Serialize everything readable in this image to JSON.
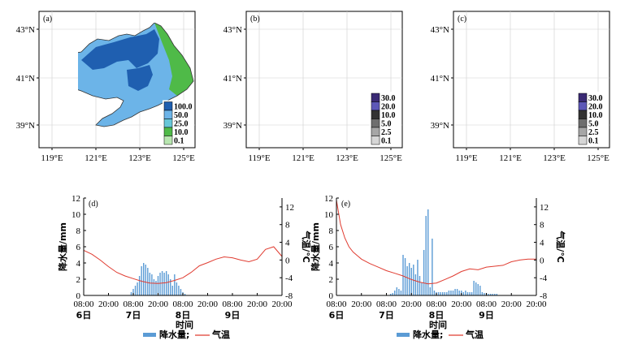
{
  "map_axes": {
    "lon_ticks": [
      "119°E",
      "121°E",
      "123°E",
      "125°E"
    ],
    "lat_ticks": [
      "43°N",
      "41°N",
      "39°N"
    ]
  },
  "maps": [
    {
      "tag": "(a)",
      "legend": [
        "100.0",
        "50.0",
        "25.0",
        "10.0",
        "0.1"
      ],
      "legend_colors": [
        "#1f5fb0",
        "#6cb4e8",
        "#67c7d8",
        "#4fba48",
        "#b8e6b0"
      ],
      "fill_colors": {
        "outer": "#6cb4e8",
        "core": "#1f5fb0",
        "east": "#4fba48",
        "west_spot": "#4fba48"
      }
    },
    {
      "tag": "(b)",
      "legend": [
        "30.0",
        "20.0",
        "10.0",
        "5.0",
        "2.5",
        "0.1"
      ],
      "legend_colors": [
        "#3a2a74",
        "#5d58b8",
        "#333333",
        "#6e6e6e",
        "#a6a6a6",
        "#d6d6d6"
      ],
      "fill_colors": {
        "outer": "#d6d6d6",
        "mid": "#a6a6a6",
        "dark": "#333333",
        "purple": "#5d58b8",
        "deep": "#3a2a74"
      }
    },
    {
      "tag": "(c)",
      "legend": [
        "30.0",
        "20.0",
        "10.0",
        "5.0",
        "2.5",
        "0.1"
      ],
      "legend_colors": [
        "#3a2a74",
        "#5d58b8",
        "#333333",
        "#6e6e6e",
        "#a6a6a6",
        "#d6d6d6"
      ],
      "fill_colors": {
        "outer": "#a6a6a6",
        "dark": "#333333",
        "purple": "#5d58b8",
        "deep": "#3a2a74"
      }
    }
  ],
  "chart_data": [
    {
      "type": "bar",
      "tag": "(d)",
      "x": [
        23,
        24,
        25,
        26,
        27,
        28,
        29,
        30,
        31,
        32,
        33,
        34,
        35,
        36,
        37,
        38,
        39,
        40,
        41,
        42,
        43,
        44,
        45,
        46,
        47,
        48,
        49
      ],
      "values": [
        0.4,
        0.8,
        1.2,
        1.6,
        2.4,
        3.6,
        4.0,
        3.8,
        3.4,
        2.8,
        2.6,
        2.0,
        1.8,
        2.4,
        2.8,
        3.0,
        2.8,
        3.0,
        2.6,
        2.0,
        1.2,
        2.6,
        1.6,
        1.2,
        0.8,
        0.4,
        0.2
      ],
      "temperature": {
        "x": [
          0,
          4,
          8,
          12,
          16,
          20,
          24,
          28,
          32,
          36,
          40,
          44,
          48,
          52,
          56,
          60,
          64,
          68,
          72,
          76,
          80,
          84,
          88,
          92,
          96
        ],
        "values": [
          2.2,
          1.3,
          0.0,
          -1.5,
          -2.8,
          -3.6,
          -4.2,
          -4.8,
          -5.2,
          -5.3,
          -5.1,
          -4.6,
          -4.0,
          -2.8,
          -1.3,
          -0.6,
          0.2,
          0.7,
          0.5,
          0.0,
          -0.4,
          0.2,
          2.4,
          3.0,
          0.8
        ]
      },
      "x_ticks": [
        "08:00",
        "20:00",
        "08:00",
        "20:00",
        "08:00",
        "20:00",
        "08:00",
        "20:00"
      ],
      "x_tick_positions": [
        0,
        12,
        24,
        36,
        48,
        60,
        72,
        84
      ],
      "date_labels": [
        "6日",
        "7日",
        "8日",
        "9日"
      ],
      "date_positions": [
        0,
        24,
        48,
        72
      ],
      "xlim": [
        0,
        96
      ],
      "ylim": [
        0,
        12
      ],
      "y2lim": [
        -8,
        14
      ],
      "y_ticks": [
        "0",
        "2",
        "4",
        "6",
        "8",
        "10",
        "12"
      ],
      "y2_ticks": [
        "-8",
        "-4",
        "0",
        "4",
        "8",
        "12"
      ],
      "ylabel": "降水量/mm",
      "y2label": "气温/℃",
      "xlabel": "时间",
      "bar_color": "#5b9bd5",
      "line_color": "#e03c31"
    },
    {
      "type": "bar",
      "tag": "(e)",
      "x": [
        26,
        27,
        28,
        29,
        30,
        31,
        32,
        33,
        34,
        35,
        36,
        37,
        38,
        39,
        40,
        41,
        42,
        43,
        44,
        45,
        46,
        47,
        48,
        49,
        50,
        51,
        52,
        53,
        54,
        55,
        56,
        57,
        58,
        59,
        60,
        61,
        62,
        63,
        64,
        65,
        66,
        67,
        68,
        69,
        70,
        71,
        72,
        73,
        74,
        75,
        76,
        77
      ],
      "values": [
        0.2,
        0.3,
        0.6,
        1.0,
        0.8,
        0.6,
        5.0,
        4.6,
        3.6,
        4.0,
        3.4,
        3.8,
        2.6,
        4.4,
        2.4,
        1.6,
        5.6,
        9.8,
        10.6,
        1.0,
        7.0,
        0.6,
        0.4,
        0.4,
        0.4,
        0.4,
        0.4,
        0.4,
        0.6,
        0.6,
        0.6,
        0.8,
        0.8,
        0.6,
        0.6,
        0.4,
        0.6,
        0.4,
        0.4,
        0.4,
        1.8,
        1.6,
        1.4,
        1.2,
        0.4,
        0.3,
        0.3,
        0.2,
        0.2,
        0.2,
        0.2,
        0.2
      ],
      "temperature": {
        "x": [
          0,
          2,
          4,
          6,
          8,
          10,
          12,
          16,
          20,
          24,
          28,
          32,
          36,
          40,
          44,
          48,
          52,
          56,
          60,
          64,
          68,
          72,
          76,
          80,
          84,
          88,
          92,
          96
        ],
        "values": [
          13.5,
          8.0,
          5.0,
          3.0,
          1.8,
          1.0,
          0.2,
          -0.8,
          -1.6,
          -2.4,
          -3.0,
          -3.6,
          -4.4,
          -5.0,
          -5.4,
          -5.2,
          -4.4,
          -3.6,
          -2.6,
          -2.0,
          -2.2,
          -1.6,
          -1.4,
          -1.2,
          -0.4,
          0.0,
          0.2,
          0.2
        ]
      },
      "x_ticks": [
        "08:00",
        "20:00",
        "08:00",
        "20:00",
        "08:00",
        "20:00",
        "08:00",
        "20:00"
      ],
      "x_tick_positions": [
        0,
        12,
        24,
        36,
        48,
        60,
        72,
        84
      ],
      "date_labels": [
        "6日",
        "7日",
        "8日",
        "9日"
      ],
      "date_positions": [
        0,
        24,
        48,
        72
      ],
      "xlim": [
        0,
        96
      ],
      "ylim": [
        0,
        12
      ],
      "y2lim": [
        -8,
        14
      ],
      "y_ticks": [
        "0",
        "2",
        "4",
        "6",
        "8",
        "10",
        "12"
      ],
      "y2_ticks": [
        "-8",
        "-4",
        "0",
        "4",
        "8",
        "12"
      ],
      "ylabel": "降水量/mm",
      "y2label": "气温/℃",
      "xlabel": "时间",
      "bar_color": "#5b9bd5",
      "line_color": "#e03c31"
    }
  ],
  "bottom_legend": {
    "bar_label": "降水量;",
    "line_label": "气温"
  }
}
